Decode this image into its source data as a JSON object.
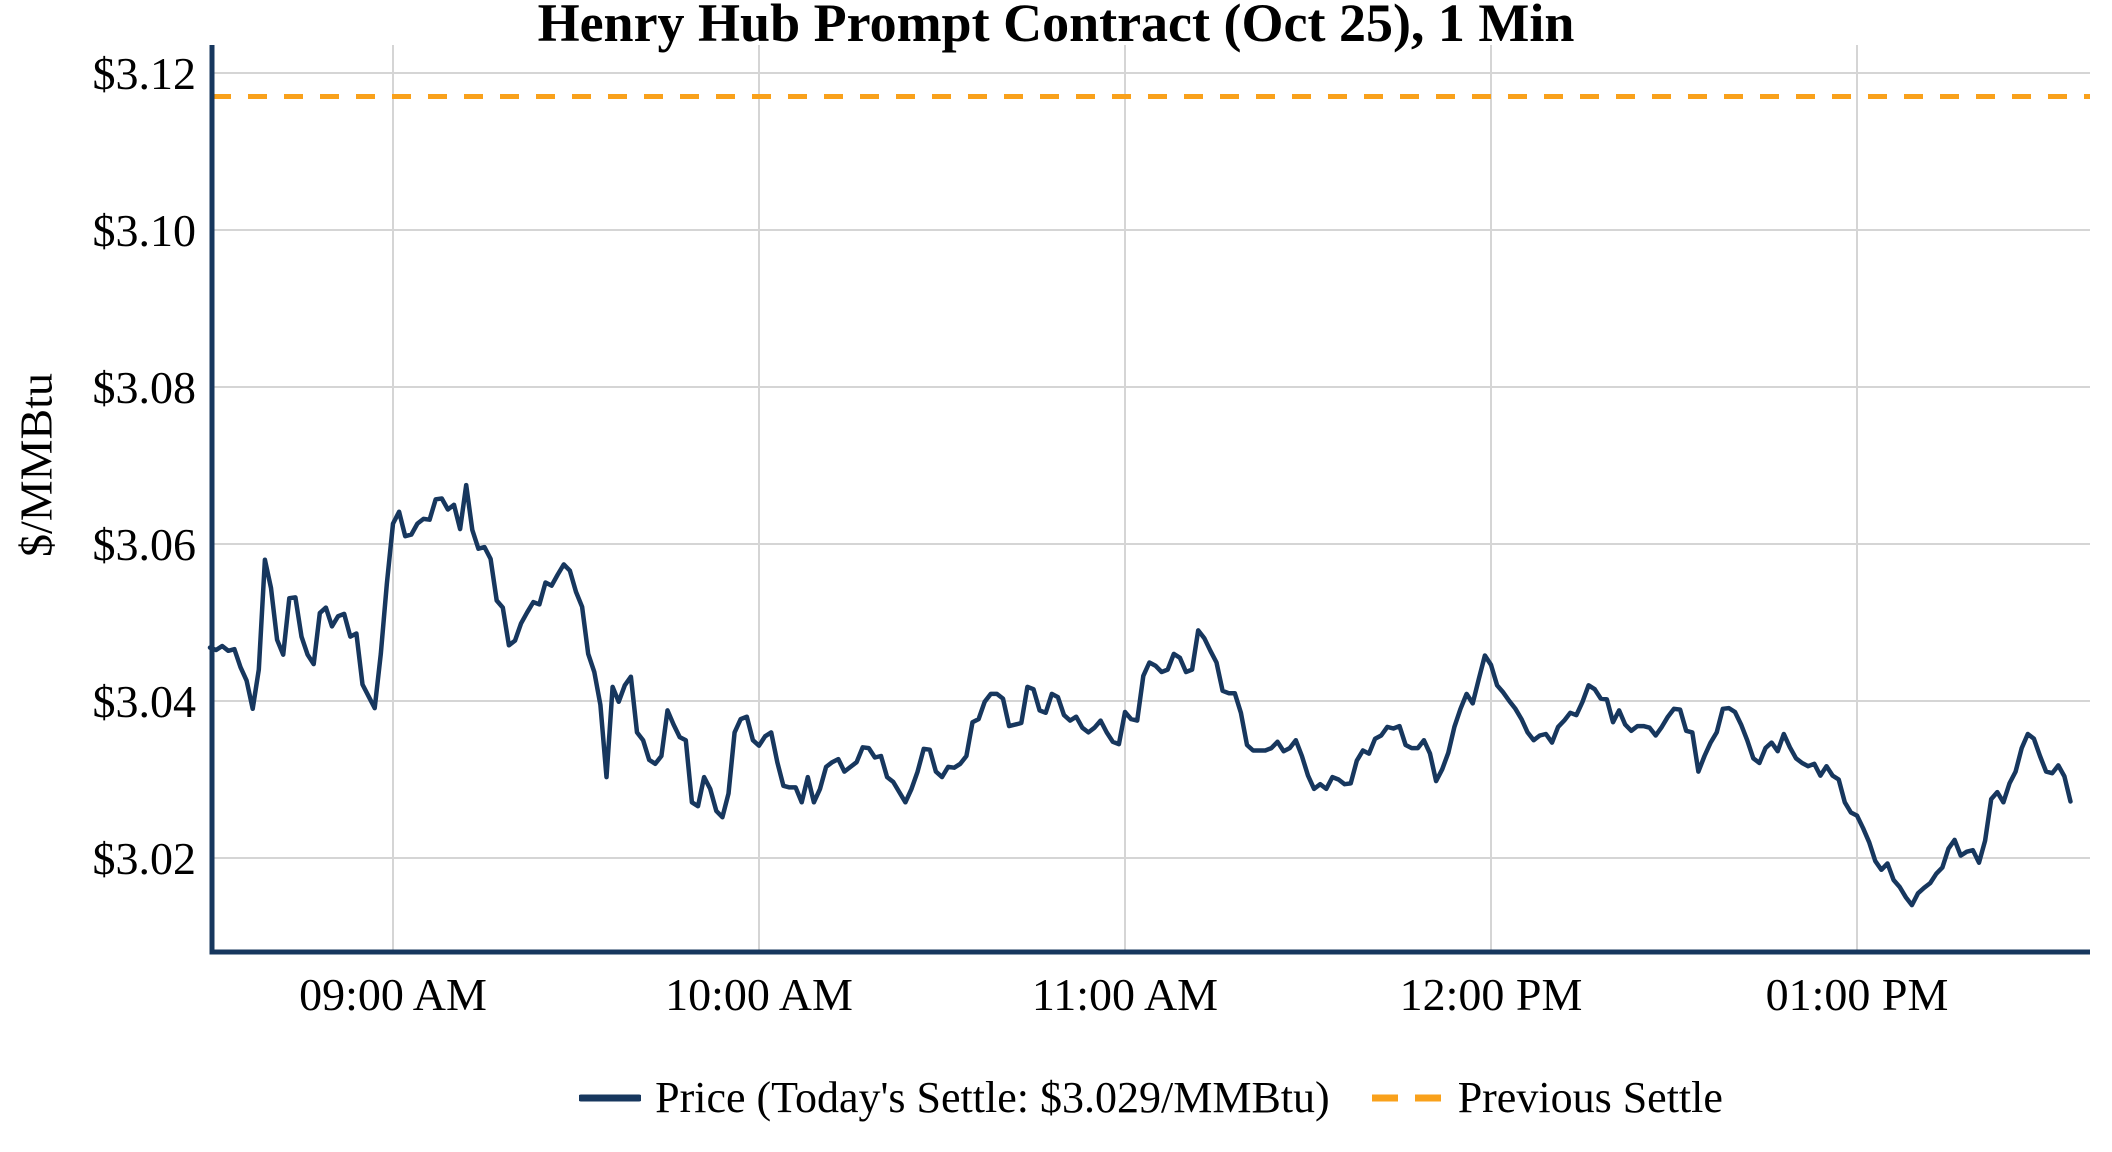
{
  "chart_data": {
    "type": "line",
    "title": "Henry Hub Prompt Contract (Oct 25), 1 Min",
    "ylabel": "$/MMBtu",
    "xlabel": "",
    "grid": true,
    "legend_position": "bottom",
    "ylim": [
      3.008,
      3.124
    ],
    "y_ticks": [
      {
        "value": 3.02,
        "label": "$3.02"
      },
      {
        "value": 3.04,
        "label": "$3.04"
      },
      {
        "value": 3.06,
        "label": "$3.06"
      },
      {
        "value": 3.08,
        "label": "$3.08"
      },
      {
        "value": 3.1,
        "label": "$3.10"
      },
      {
        "value": 3.12,
        "label": "$3.12"
      }
    ],
    "x_ticks": [
      {
        "minute": 30,
        "label": "09:00 AM"
      },
      {
        "minute": 90,
        "label": "10:00 AM"
      },
      {
        "minute": 150,
        "label": "11:00 AM"
      },
      {
        "minute": 210,
        "label": "12:00 PM"
      },
      {
        "minute": 270,
        "label": "01:00 PM"
      }
    ],
    "today_settle": 3.029,
    "previous_settle": 3.117,
    "price_series": {
      "name": "Price (Today's Settle: $3.029/MMBtu)",
      "color": "#17375E",
      "interval_minutes": 1,
      "values": [
        3.0468,
        3.0465,
        3.047,
        3.0464,
        3.0466,
        3.0443,
        3.0426,
        3.039,
        3.044,
        3.058,
        3.0544,
        3.0478,
        3.0459,
        3.0531,
        3.0532,
        3.0482,
        3.0459,
        3.0447,
        3.0512,
        3.0519,
        3.0495,
        3.0508,
        3.0511,
        3.0482,
        3.0486,
        3.0421,
        3.0406,
        3.0391,
        3.046,
        3.055,
        3.0626,
        3.0641,
        3.061,
        3.0612,
        3.0626,
        3.0632,
        3.0631,
        3.0657,
        3.0658,
        3.0644,
        3.065,
        3.0619,
        3.0675,
        3.0618,
        3.0594,
        3.0596,
        3.0581,
        3.0528,
        3.0519,
        3.0471,
        3.0477,
        3.0499,
        3.0513,
        3.0526,
        3.0523,
        3.0551,
        3.0547,
        3.0561,
        3.0574,
        3.0566,
        3.0539,
        3.052,
        3.046,
        3.0437,
        3.0395,
        3.0303,
        3.0418,
        3.0399,
        3.042,
        3.0431,
        3.036,
        3.035,
        3.0325,
        3.032,
        3.033,
        3.0388,
        3.037,
        3.0354,
        3.035,
        3.0271,
        3.0266,
        3.0303,
        3.0288,
        3.026,
        3.0252,
        3.0282,
        3.036,
        3.0377,
        3.038,
        3.035,
        3.0343,
        3.0355,
        3.036,
        3.0322,
        3.0292,
        3.029,
        3.029,
        3.0271,
        3.0303,
        3.0271,
        3.0288,
        3.0316,
        3.0322,
        3.0326,
        3.031,
        3.0316,
        3.0322,
        3.0341,
        3.034,
        3.0328,
        3.033,
        3.0303,
        3.0297,
        3.0284,
        3.0271,
        3.0288,
        3.031,
        3.0339,
        3.0338,
        3.031,
        3.0303,
        3.0316,
        3.0315,
        3.032,
        3.033,
        3.0373,
        3.0377,
        3.0399,
        3.0409,
        3.0409,
        3.0403,
        3.0368,
        3.037,
        3.0372,
        3.0418,
        3.0415,
        3.0388,
        3.0385,
        3.0409,
        3.0405,
        3.0382,
        3.0375,
        3.038,
        3.0366,
        3.036,
        3.0366,
        3.0375,
        3.036,
        3.0348,
        3.0345,
        3.0386,
        3.0377,
        3.0375,
        3.0432,
        3.0449,
        3.0445,
        3.0437,
        3.044,
        3.046,
        3.0455,
        3.0437,
        3.044,
        3.049,
        3.048,
        3.0464,
        3.0449,
        3.0413,
        3.041,
        3.041,
        3.0385,
        3.0344,
        3.0337,
        3.0337,
        3.0337,
        3.034,
        3.0348,
        3.0336,
        3.034,
        3.035,
        3.033,
        3.0305,
        3.0288,
        3.0294,
        3.0288,
        3.0303,
        3.03,
        3.0294,
        3.0295,
        3.0324,
        3.0337,
        3.0333,
        3.0352,
        3.0356,
        3.0367,
        3.0365,
        3.0368,
        3.0344,
        3.034,
        3.034,
        3.035,
        3.0333,
        3.0298,
        3.0313,
        3.0334,
        3.0367,
        3.039,
        3.0409,
        3.0397,
        3.0428,
        3.0458,
        3.0446,
        3.042,
        3.0411,
        3.04,
        3.039,
        3.0377,
        3.036,
        3.035,
        3.0356,
        3.0358,
        3.0347,
        3.0367,
        3.0375,
        3.0385,
        3.0382,
        3.0399,
        3.042,
        3.0415,
        3.0403,
        3.0402,
        3.0373,
        3.0388,
        3.037,
        3.0362,
        3.0368,
        3.0368,
        3.0366,
        3.0356,
        3.0367,
        3.038,
        3.039,
        3.0389,
        3.0362,
        3.036,
        3.031,
        3.033,
        3.0347,
        3.036,
        3.039,
        3.0391,
        3.0386,
        3.037,
        3.035,
        3.0327,
        3.0321,
        3.034,
        3.0347,
        3.0336,
        3.0358,
        3.0341,
        3.0327,
        3.0321,
        3.0317,
        3.032,
        3.0305,
        3.0317,
        3.0305,
        3.03,
        3.0271,
        3.0258,
        3.0254,
        3.0238,
        3.022,
        3.0196,
        3.0185,
        3.0193,
        3.0172,
        3.0163,
        3.015,
        3.014,
        3.0155,
        3.0162,
        3.0168,
        3.018,
        3.0188,
        3.0212,
        3.0223,
        3.0203,
        3.0208,
        3.021,
        3.0194,
        3.0222,
        3.0275,
        3.0284,
        3.0271,
        3.0295,
        3.031,
        3.034,
        3.0358,
        3.0352,
        3.033,
        3.031,
        3.0308,
        3.0318,
        3.0304,
        3.0272
      ]
    },
    "settle_series": {
      "name": "Previous Settle",
      "color": "#F9A11B",
      "style": "dashed",
      "value": 3.117
    }
  },
  "legend": {
    "price_label": "Price (Today's Settle: $3.029/MMBtu)",
    "settle_label": "Previous Settle"
  },
  "colors": {
    "price_line": "#17375E",
    "settle_line": "#F9A11B",
    "grid": "#D5D5D5",
    "axis": "#17375E",
    "text": "#000000",
    "background": "#FFFFFF"
  }
}
